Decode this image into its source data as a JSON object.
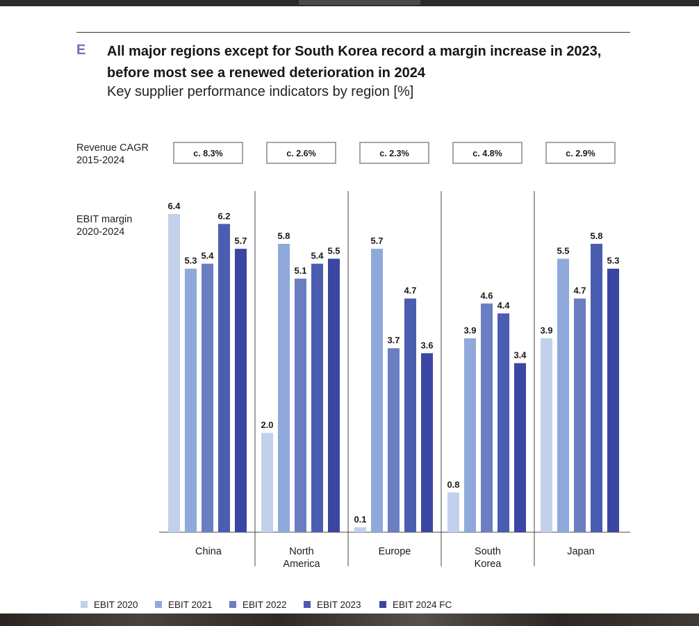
{
  "header": {
    "letter": "E",
    "title": "All major regions except for South Korea record a margin increase in 2023, before most see a renewed deterioration in 2024",
    "subtitle": "Key supplier performance indicators by region [%]"
  },
  "row_labels": {
    "cagr_line1": "Revenue CAGR",
    "cagr_line2": "2015-2024",
    "ebit_line1": "EBIT margin",
    "ebit_line2": "2020-2024"
  },
  "colors": [
    "#c2d0ec",
    "#8ea9da",
    "#6b7ec2",
    "#4a5db0",
    "#3b46a2"
  ],
  "chart_data": {
    "type": "bar",
    "categories": [
      [
        "China"
      ],
      [
        "North",
        "America"
      ],
      [
        "Europe"
      ],
      [
        "South",
        "Korea"
      ],
      [
        "Japan"
      ]
    ],
    "cagr": [
      "c. 8.3%",
      "c. 2.6%",
      "c. 2.3%",
      "c. 4.8%",
      "c. 2.9%"
    ],
    "series": [
      {
        "name": "EBIT 2020",
        "values": [
          6.4,
          2.0,
          0.1,
          0.8,
          3.9
        ]
      },
      {
        "name": "EBIT 2021",
        "values": [
          5.3,
          5.8,
          5.7,
          3.9,
          5.5
        ]
      },
      {
        "name": "EBIT 2022",
        "values": [
          5.4,
          5.1,
          3.7,
          4.6,
          4.7
        ]
      },
      {
        "name": "EBIT 2023",
        "values": [
          6.2,
          5.4,
          4.7,
          4.4,
          5.8
        ]
      },
      {
        "name": "EBIT 2024 FC",
        "values": [
          5.7,
          5.5,
          3.6,
          3.4,
          5.3
        ]
      }
    ],
    "ylim": [
      0,
      6.4
    ],
    "legend": "bottom-left",
    "grid": false
  }
}
